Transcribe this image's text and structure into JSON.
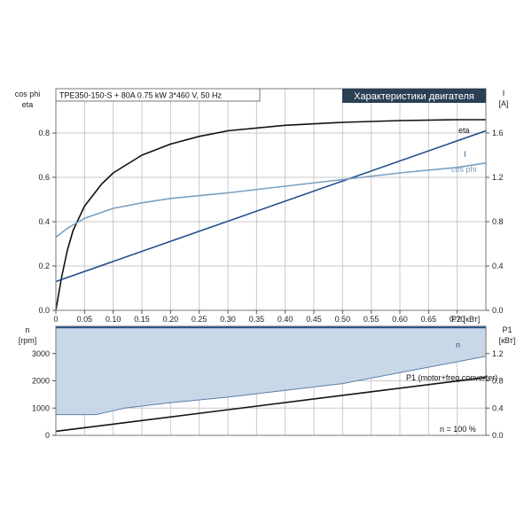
{
  "header": {
    "info": "TPE350-150-S + 80A   0.75 kW   3*460 V, 50 Hz",
    "title": "Характеристики двигателя"
  },
  "colors": {
    "eta": "#111111",
    "current": "#1f4e8c",
    "cosphi": "#7aa0c0",
    "speed": "#1f4e8c",
    "band_fill": "#c6d6e6",
    "band_edge": "#5a7fa8",
    "p1": "#111111",
    "title_bg": "#2b3f55",
    "grid": "#c8c8c8"
  },
  "chart_data": [
    {
      "type": "line",
      "name": "motor-characteristics",
      "grid": true,
      "xlabel": "P2 [кВт]",
      "ylabel_left": [
        "cos phi",
        "eta"
      ],
      "ylabel_right": [
        "I",
        "[A]"
      ],
      "xlim": [
        0,
        0.75
      ],
      "ylim_left": [
        0,
        1.0
      ],
      "ylim_right": [
        0,
        2.0
      ],
      "x_ticks": [
        "0",
        "0.05",
        "0.10",
        "0.15",
        "0.20",
        "0.25",
        "0.30",
        "0.35",
        "0.40",
        "0.45",
        "0.50",
        "0.55",
        "0.60",
        "0.65",
        "0.70"
      ],
      "y_ticks_left": [
        "0.0",
        "0.2",
        "0.4",
        "0.6",
        "0.8"
      ],
      "y_ticks_right": [
        "0.0",
        "0.4",
        "0.8",
        "1.2",
        "1.6"
      ],
      "series": [
        {
          "name": "eta",
          "axis": "left",
          "x": [
            0.0,
            0.01,
            0.02,
            0.03,
            0.05,
            0.08,
            0.1,
            0.15,
            0.2,
            0.25,
            0.3,
            0.4,
            0.5,
            0.6,
            0.7,
            0.75
          ],
          "y": [
            0.0,
            0.15,
            0.27,
            0.36,
            0.47,
            0.57,
            0.62,
            0.7,
            0.75,
            0.785,
            0.81,
            0.835,
            0.848,
            0.856,
            0.86,
            0.86
          ]
        },
        {
          "name": "I",
          "axis": "right",
          "x": [
            0.0,
            0.75
          ],
          "y": [
            0.26,
            1.62
          ]
        },
        {
          "name": "cos phi",
          "axis": "left",
          "x": [
            0.0,
            0.02,
            0.05,
            0.1,
            0.15,
            0.2,
            0.3,
            0.4,
            0.5,
            0.6,
            0.7,
            0.75
          ],
          "y": [
            0.33,
            0.37,
            0.415,
            0.46,
            0.485,
            0.505,
            0.53,
            0.56,
            0.59,
            0.62,
            0.645,
            0.665
          ]
        }
      ]
    },
    {
      "type": "area",
      "name": "speed-power",
      "grid": true,
      "ylabel_left": [
        "n",
        "[rpm]"
      ],
      "ylabel_right": [
        "P1",
        "[кВт]"
      ],
      "xlim": [
        0,
        0.75
      ],
      "ylim_left": [
        0,
        4000
      ],
      "ylim_right": [
        0,
        1.6
      ],
      "y_ticks_left": [
        "0",
        "1000",
        "2000",
        "3000"
      ],
      "y_ticks_right": [
        "0.0",
        "0.4",
        "0.8",
        "1.2"
      ],
      "speed_band": {
        "name": "n",
        "upper": {
          "x": [
            0.0,
            0.75
          ],
          "y": [
            3960,
            3960
          ]
        },
        "lower": {
          "x": [
            0.0,
            0.07,
            0.12,
            0.2,
            0.3,
            0.4,
            0.5,
            0.6,
            0.7,
            0.75
          ],
          "y": [
            760,
            760,
            1000,
            1200,
            1400,
            1650,
            1900,
            2300,
            2700,
            2900
          ]
        }
      },
      "series": [
        {
          "name": "P1 (motor+freq.converter)",
          "axis": "right",
          "x": [
            0.0,
            0.75
          ],
          "y": [
            0.06,
            0.85
          ]
        }
      ],
      "annotation": "n = 100 %"
    }
  ]
}
